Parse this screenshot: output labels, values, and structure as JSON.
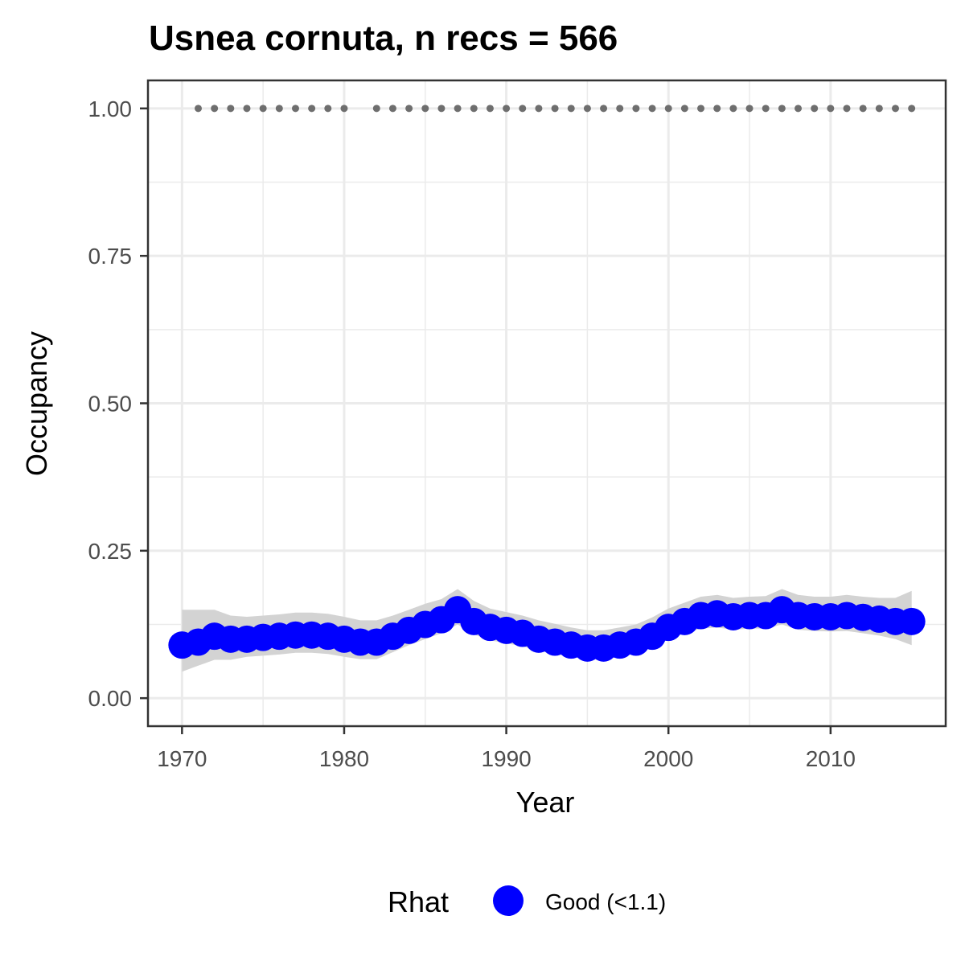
{
  "chart_data": {
    "type": "line",
    "title": "Usnea cornuta, n recs = 566",
    "xlabel": "Year",
    "ylabel": "Occupancy",
    "xlim": [
      1967.9,
      2017.1
    ],
    "ylim": [
      -0.0475,
      1.0475
    ],
    "x_ticks": [
      1970,
      1980,
      1990,
      2000,
      2010
    ],
    "x_tick_labels": [
      "1970",
      "1980",
      "1990",
      "2000",
      "2010"
    ],
    "y_ticks": [
      0,
      0.25,
      0.5,
      0.75,
      1.0
    ],
    "y_tick_labels": [
      "0.00",
      "0.25",
      "0.50",
      "0.75",
      "1.00"
    ],
    "grid": true,
    "legend": {
      "title": "Rhat",
      "position": "bottom",
      "entries": [
        {
          "label": "Good (<1.1)",
          "color": "#0000ff"
        }
      ]
    },
    "colors": {
      "series": "#0000ff",
      "ribbon": "#d3d3d3",
      "records": "#6e6e6e",
      "grid": "#ebebeb",
      "panel_border": "#333333"
    },
    "series": [
      {
        "x": [
          1970,
          1971,
          1972,
          1973,
          1974,
          1975,
          1976,
          1977,
          1978,
          1979,
          1980,
          1981,
          1982,
          1983,
          1984,
          1985,
          1986,
          1987,
          1988,
          1989,
          1990,
          1991,
          1992,
          1993,
          1994,
          1995,
          1996,
          1997,
          1998,
          1999,
          2000,
          2001,
          2002,
          2003,
          2004,
          2005,
          2006,
          2007,
          2008,
          2009,
          2010,
          2011,
          2012,
          2013,
          2014,
          2015
        ],
        "y": [
          0.09,
          0.095,
          0.105,
          0.1,
          0.1,
          0.103,
          0.105,
          0.107,
          0.107,
          0.105,
          0.1,
          0.095,
          0.095,
          0.105,
          0.115,
          0.125,
          0.133,
          0.15,
          0.13,
          0.12,
          0.115,
          0.11,
          0.1,
          0.095,
          0.09,
          0.085,
          0.085,
          0.09,
          0.095,
          0.105,
          0.12,
          0.13,
          0.14,
          0.143,
          0.138,
          0.14,
          0.14,
          0.15,
          0.14,
          0.138,
          0.138,
          0.14,
          0.137,
          0.134,
          0.13,
          0.13
        ],
        "lower": [
          0.045,
          0.055,
          0.065,
          0.065,
          0.07,
          0.072,
          0.074,
          0.077,
          0.077,
          0.075,
          0.07,
          0.066,
          0.066,
          0.078,
          0.09,
          0.1,
          0.11,
          0.125,
          0.108,
          0.098,
          0.093,
          0.088,
          0.08,
          0.075,
          0.07,
          0.066,
          0.066,
          0.07,
          0.077,
          0.087,
          0.1,
          0.11,
          0.118,
          0.12,
          0.116,
          0.118,
          0.118,
          0.125,
          0.116,
          0.114,
          0.113,
          0.114,
          0.11,
          0.106,
          0.1,
          0.09
        ],
        "upper": [
          0.15,
          0.15,
          0.15,
          0.14,
          0.138,
          0.14,
          0.142,
          0.145,
          0.145,
          0.143,
          0.138,
          0.132,
          0.132,
          0.14,
          0.15,
          0.16,
          0.168,
          0.185,
          0.165,
          0.152,
          0.146,
          0.14,
          0.132,
          0.126,
          0.12,
          0.115,
          0.115,
          0.12,
          0.125,
          0.137,
          0.152,
          0.162,
          0.172,
          0.175,
          0.17,
          0.172,
          0.173,
          0.185,
          0.175,
          0.172,
          0.172,
          0.175,
          0.172,
          0.17,
          0.17,
          0.182
        ]
      }
    ],
    "record_years": [
      1971,
      1972,
      1973,
      1974,
      1975,
      1976,
      1977,
      1978,
      1979,
      1980,
      1982,
      1983,
      1984,
      1985,
      1986,
      1987,
      1988,
      1989,
      1990,
      1991,
      1992,
      1993,
      1994,
      1995,
      1996,
      1997,
      1998,
      1999,
      2000,
      2001,
      2002,
      2003,
      2004,
      2005,
      2006,
      2007,
      2008,
      2009,
      2010,
      2011,
      2012,
      2013,
      2014,
      2015
    ],
    "record_y": 1.0
  }
}
